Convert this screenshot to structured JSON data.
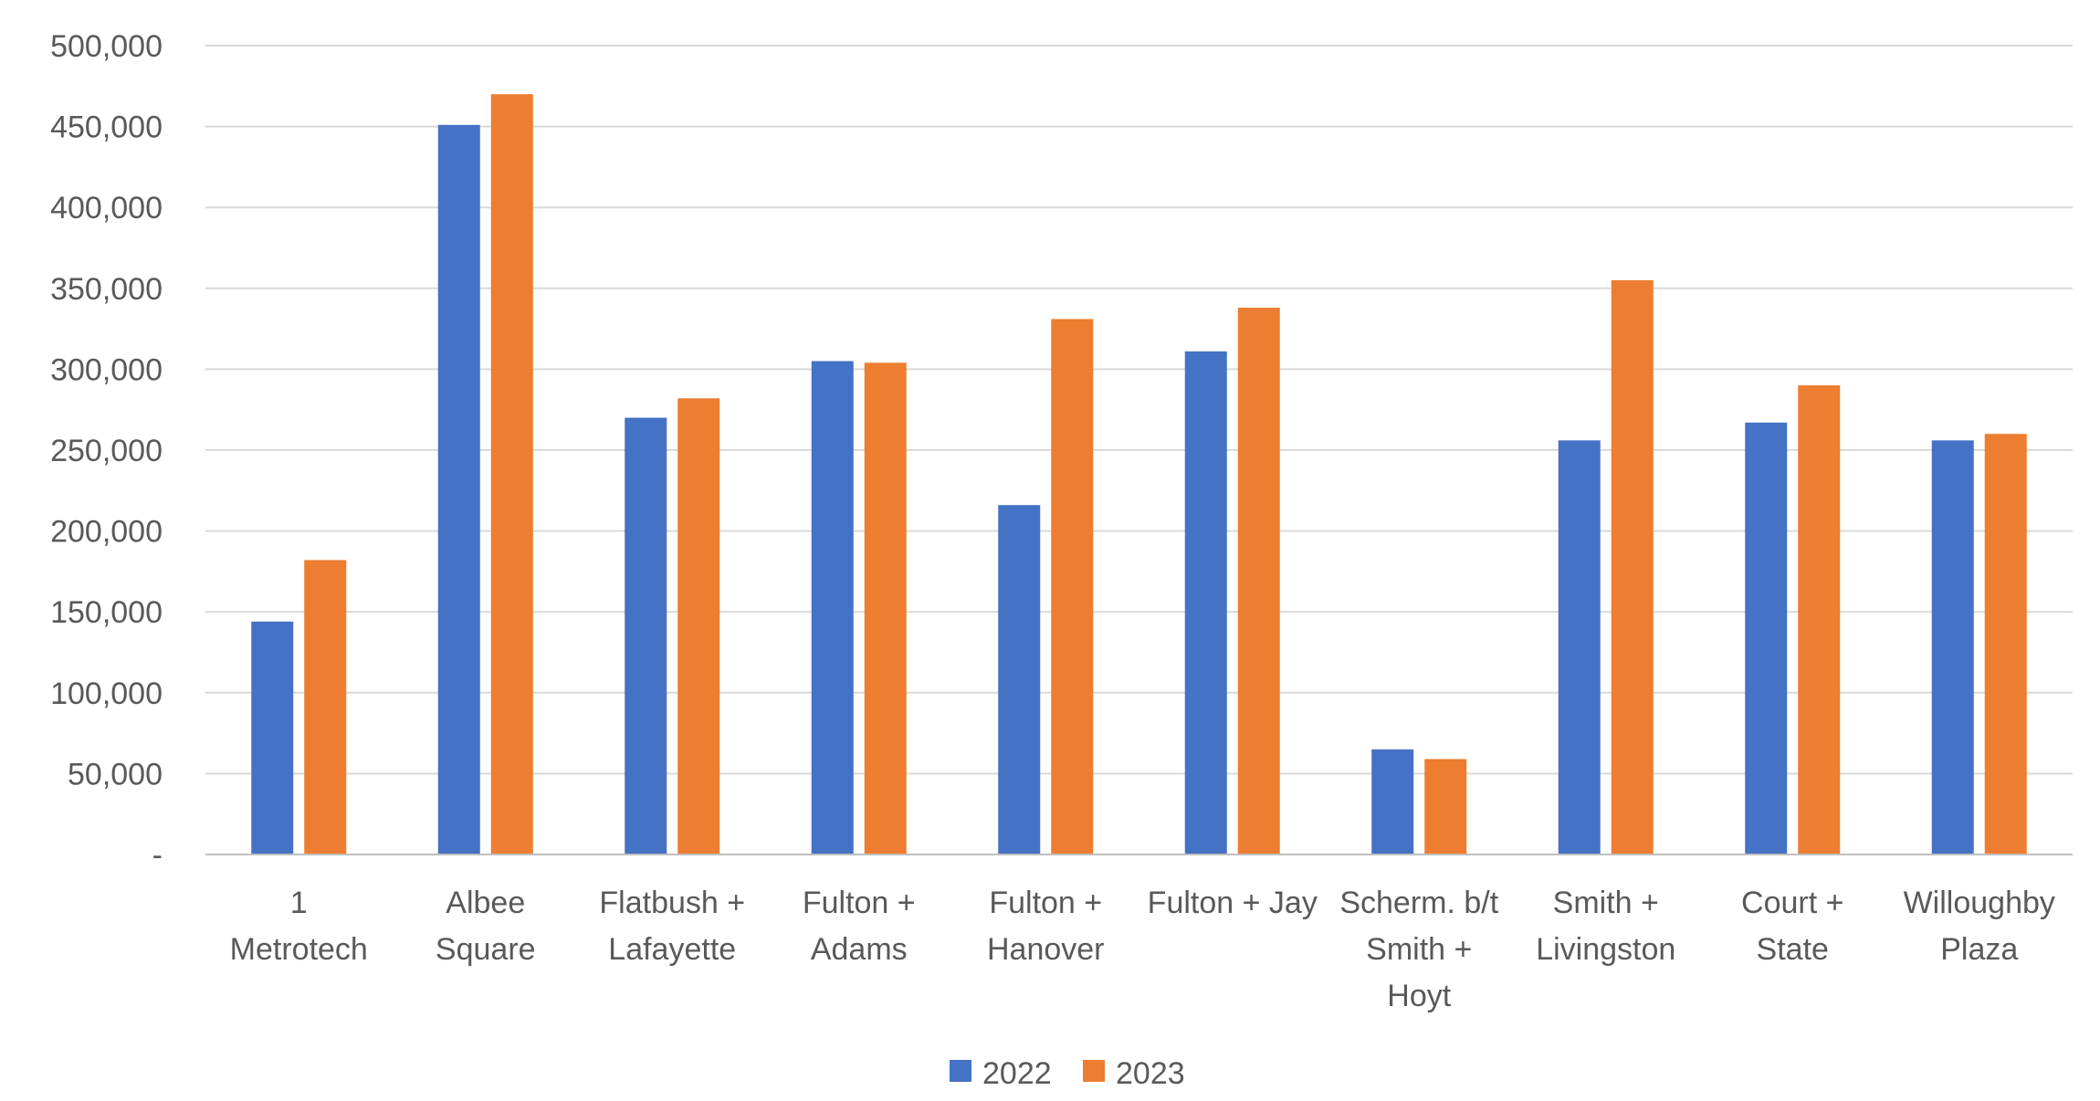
{
  "chart_data": {
    "type": "bar",
    "categories": [
      [
        "1",
        "Metrotech"
      ],
      [
        "Albee",
        "Square"
      ],
      [
        "Flatbush +",
        "Lafayette"
      ],
      [
        "Fulton +",
        "Adams"
      ],
      [
        "Fulton +",
        "Hanover"
      ],
      [
        "Fulton + Jay"
      ],
      [
        "Scherm. b/t",
        "Smith +",
        "Hoyt"
      ],
      [
        "Smith +",
        "Livingston"
      ],
      [
        "Court +",
        "State"
      ],
      [
        "Willoughby",
        "Plaza"
      ]
    ],
    "series": [
      {
        "name": "2022",
        "color": "#4472c4",
        "values": [
          144000,
          451000,
          270000,
          305000,
          216000,
          311000,
          65000,
          256000,
          267000,
          256000
        ]
      },
      {
        "name": "2023",
        "color": "#ed7d31",
        "values": [
          182000,
          470000,
          282000,
          304000,
          331000,
          338000,
          59000,
          355000,
          290000,
          260000
        ]
      }
    ],
    "ylim": [
      0,
      500000
    ],
    "ytick_values": [
      0,
      50000,
      100000,
      150000,
      200000,
      250000,
      300000,
      350000,
      400000,
      450000,
      500000
    ],
    "ytick_labels": [
      "-",
      "50,000",
      "100,000",
      "150,000",
      "200,000",
      "250,000",
      "300,000",
      "350,000",
      "400,000",
      "450,000",
      "500,000"
    ],
    "grid": true,
    "legend_position": "bottom",
    "title": "",
    "xlabel": "",
    "ylabel": ""
  }
}
